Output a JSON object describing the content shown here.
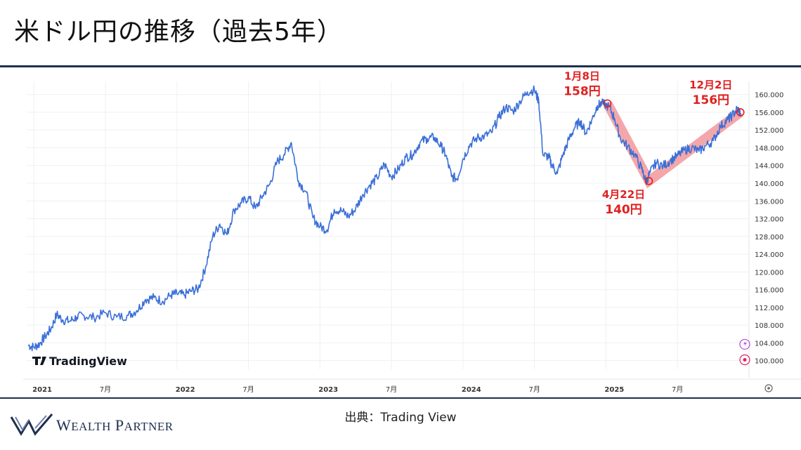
{
  "page": {
    "title": "米ドル円の推移（過去5年）",
    "source": "出典：Trading View",
    "brand": "Wealth Partner",
    "tv_logo_text": "TradingView"
  },
  "chart_data": {
    "type": "line",
    "title": "米ドル円の推移（過去5年）",
    "xlabel": "",
    "ylabel": "",
    "ylim": [
      99,
      162
    ],
    "y_ticks": [
      "100.000",
      "104.000",
      "108.000",
      "112.000",
      "116.000",
      "120.000",
      "124.000",
      "128.000",
      "132.000",
      "136.000",
      "140.000",
      "144.000",
      "148.000",
      "152.000",
      "156.000",
      "160.000"
    ],
    "x_ticks": [
      {
        "label": "2021",
        "t": 2021.0
      },
      {
        "label": "7月",
        "t": 2021.5
      },
      {
        "label": "2022",
        "t": 2022.0
      },
      {
        "label": "7月",
        "t": 2022.5
      },
      {
        "label": "2023",
        "t": 2023.0
      },
      {
        "label": "7月",
        "t": 2023.5
      },
      {
        "label": "2024",
        "t": 2024.0
      },
      {
        "label": "7月",
        "t": 2024.5
      },
      {
        "label": "2025",
        "t": 2025.0
      },
      {
        "label": "7月",
        "t": 2025.5
      }
    ],
    "grid": true,
    "line_color": "#3b6fd8",
    "highlight_color": "#f08a8f",
    "marker_color": "#e02020",
    "series": [
      {
        "t": [
          2020.96,
          2021.0,
          2021.04,
          2021.08,
          2021.12,
          2021.16,
          2021.2,
          2021.25,
          2021.3,
          2021.35,
          2021.42,
          2021.5,
          2021.58,
          2021.66,
          2021.72,
          2021.78,
          2021.84,
          2021.9,
          2021.96,
          2022.0,
          2022.05,
          2022.1,
          2022.15,
          2022.2,
          2022.25,
          2022.3,
          2022.35,
          2022.4,
          2022.45,
          2022.5,
          2022.55,
          2022.6,
          2022.65,
          2022.7,
          2022.75,
          2022.8,
          2022.85,
          2022.9,
          2022.95,
          2023.0,
          2023.05,
          2023.1,
          2023.15,
          2023.2,
          2023.25,
          2023.3,
          2023.35,
          2023.4,
          2023.45,
          2023.5,
          2023.55,
          2023.6,
          2023.65,
          2023.7,
          2023.75,
          2023.8,
          2023.85,
          2023.88,
          2023.92,
          2023.96,
          2024.0,
          2024.05,
          2024.1,
          2024.15,
          2024.2,
          2024.25,
          2024.3,
          2024.35,
          2024.4,
          2024.45,
          2024.5,
          2024.53,
          2024.56,
          2024.6,
          2024.62,
          2024.66,
          2024.7,
          2024.74,
          2024.78,
          2024.82,
          2024.86,
          2024.9,
          2024.94,
          2024.97,
          2025.02,
          2025.06,
          2025.1,
          2025.15,
          2025.2,
          2025.25,
          2025.28,
          2025.31,
          2025.35,
          2025.4,
          2025.45,
          2025.5,
          2025.55,
          2025.6,
          2025.65,
          2025.7,
          2025.75,
          2025.8,
          2025.85,
          2025.88,
          2025.92,
          2025.94
        ],
        "values": [
          103.5,
          103.0,
          103.8,
          105.5,
          107.2,
          110.4,
          109.2,
          108.9,
          109.8,
          110.2,
          109.7,
          110.8,
          109.8,
          110.2,
          111.3,
          113.8,
          114.2,
          113.4,
          114.8,
          115.1,
          114.8,
          115.7,
          116.2,
          121.0,
          128.0,
          130.8,
          128.4,
          134.0,
          135.5,
          136.8,
          134.3,
          137.2,
          139.8,
          144.8,
          146.5,
          149.2,
          140.5,
          138.2,
          132.3,
          130.2,
          129.5,
          134.1,
          133.8,
          132.5,
          134.3,
          137.5,
          139.6,
          141.2,
          144.3,
          141.5,
          143.2,
          145.8,
          146.5,
          149.2,
          150.1,
          150.3,
          148.2,
          146.3,
          141.5,
          141.0,
          145.5,
          148.8,
          150.2,
          150.6,
          151.4,
          154.8,
          157.2,
          156.2,
          158.5,
          160.6,
          161.0,
          158.5,
          146.3,
          146.0,
          144.2,
          142.2,
          146.5,
          149.8,
          152.5,
          154.0,
          151.3,
          154.2,
          157.5,
          158.0,
          157.3,
          154.6,
          150.2,
          148.3,
          146.5,
          143.2,
          140.3,
          142.5,
          144.6,
          143.9,
          145.1,
          146.2,
          147.5,
          148.0,
          147.2,
          148.5,
          149.6,
          152.8,
          154.3,
          155.2,
          156.8,
          155.8
        ]
      }
    ],
    "highlight_path": [
      {
        "t": 2025.01,
        "value": 158.0
      },
      {
        "t": 2025.3,
        "value": 140.5
      },
      {
        "t": 2025.94,
        "value": 156.0
      }
    ],
    "annotations": [
      {
        "date": "1月8日",
        "price": "158円",
        "t": 2025.01,
        "value": 158.0,
        "position": "above"
      },
      {
        "date": "4月22日",
        "price": "140円",
        "t": 2025.3,
        "value": 140.5,
        "position": "below"
      },
      {
        "date": "12月2日",
        "price": "156円",
        "t": 2025.94,
        "value": 156.0,
        "position": "above"
      }
    ]
  }
}
